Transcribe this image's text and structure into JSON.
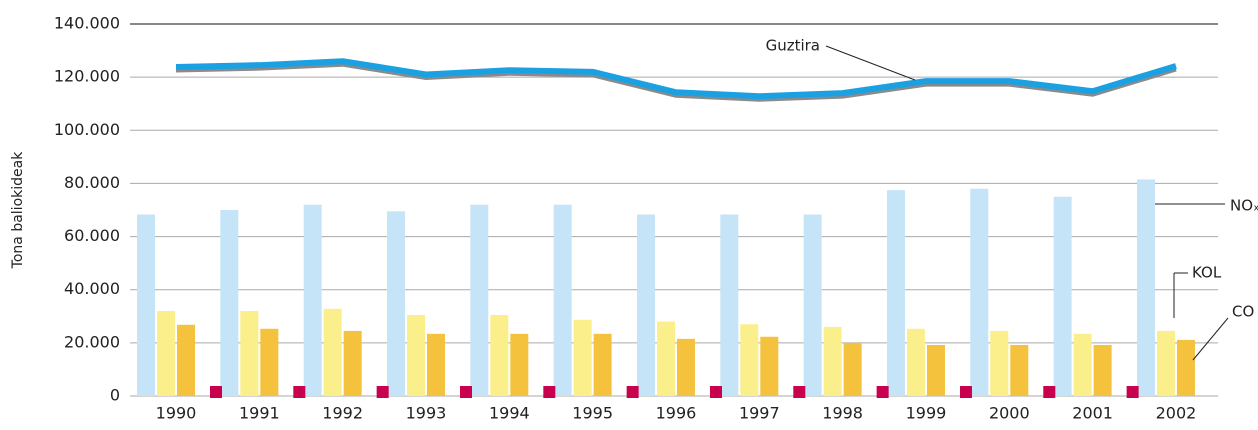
{
  "chart_data": {
    "type": "bar",
    "y_label": "Tona baliokideak",
    "categories": [
      "1990",
      "1991",
      "1992",
      "1993",
      "1994",
      "1995",
      "1996",
      "1997",
      "1998",
      "1999",
      "2000",
      "2001",
      "2002"
    ],
    "series": [
      {
        "name": "NOₓ",
        "color": "#c6e4f7",
        "values": [
          68300,
          70000,
          72000,
          69500,
          72000,
          72000,
          68300,
          68300,
          68300,
          77500,
          78000,
          75000,
          81500
        ]
      },
      {
        "name": "KOL",
        "color": "#fbef8c",
        "values": [
          32000,
          32000,
          32800,
          30500,
          30500,
          28700,
          28000,
          27000,
          26000,
          25300,
          24500,
          23400,
          24500
        ]
      },
      {
        "name": "CO",
        "color": "#f4c23c",
        "values": [
          26800,
          25300,
          24500,
          23400,
          23400,
          23400,
          21500,
          22300,
          20000,
          19200,
          19200,
          19200,
          21100
        ]
      },
      {
        "color": "#c8004e",
        "values": [
          1500,
          1500,
          1500,
          1500,
          1500,
          1500,
          1500,
          1500,
          1500,
          1500,
          1500,
          1500,
          null
        ]
      },
      {
        "name": "Guztira",
        "type": "line",
        "color": "#1ba1e2",
        "values": [
          123800,
          124500,
          126000,
          121000,
          122600,
          122000,
          114300,
          112800,
          114000,
          118500,
          118500,
          114700,
          124200
        ]
      }
    ],
    "ylim": [
      0,
      140000
    ],
    "yticks": [
      0,
      {
        "value": 20000,
        "label": "20.000"
      },
      {
        "value": 40000,
        "label": "40.000"
      },
      {
        "value": 60000,
        "label": "60.000"
      },
      {
        "value": 80000,
        "label": "80.000"
      },
      {
        "value": 100000,
        "label": "100.000"
      },
      {
        "value": 120000,
        "label": "120.000"
      },
      {
        "value": 140000,
        "label": "140.000"
      }
    ],
    "grid": true
  }
}
